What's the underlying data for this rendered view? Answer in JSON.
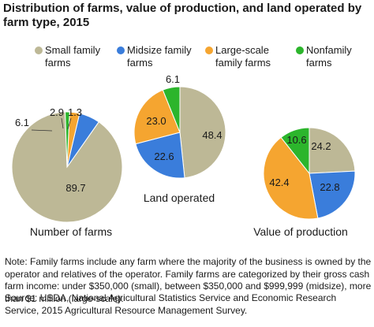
{
  "title": "Distribution of farms, value of production, and land operated by farm type, 2015",
  "colors": {
    "small_family": "#bdb896",
    "midsize_family": "#3a7ddb",
    "large_scale_family": "#f5a530",
    "nonfamily": "#2cb52c"
  },
  "legend": [
    {
      "label": "Small family\nfarms",
      "color": "#bdb896"
    },
    {
      "label": "Midsize family\nfarms",
      "color": "#3a7ddb"
    },
    {
      "label": "Large-scale\nfamily farms",
      "color": "#f5a530"
    },
    {
      "label": "Nonfamily\nfarms",
      "color": "#2cb52c"
    }
  ],
  "chart_data": [
    {
      "type": "pie",
      "title": "Number of farms",
      "categories": [
        "Small family farms",
        "Midsize family farms",
        "Large-scale family farms",
        "Nonfamily farms"
      ],
      "values": [
        89.7,
        6.1,
        2.9,
        1.3
      ],
      "labels": [
        "89.7",
        "6.1",
        "2.9",
        "1.3"
      ]
    },
    {
      "type": "pie",
      "title": "Land operated",
      "categories": [
        "Small family farms",
        "Midsize family farms",
        "Large-scale family farms",
        "Nonfamily farms"
      ],
      "values": [
        48.4,
        22.6,
        23.0,
        6.1
      ],
      "labels": [
        "48.4",
        "22.6",
        "23.0",
        "6.1"
      ]
    },
    {
      "type": "pie",
      "title": "Value of production",
      "categories": [
        "Small family farms",
        "Midsize family farms",
        "Large-scale family farms",
        "Nonfamily farms"
      ],
      "values": [
        24.2,
        22.8,
        42.4,
        10.6
      ],
      "labels": [
        "24.2",
        "22.8",
        "42.4",
        "10.6"
      ]
    }
  ],
  "note": "Note: Family farms include any farm where the majority of the business is owned by the operator and relatives of the operator.  Family farms are categorized by their gross cash farm income: under $350,000 (small), between $350,000 and $999,999 (midsize), more than $1 million (large-scale).",
  "source": "Source: USDA, National Agricultural Statistics Service and Economic Research Service, 2015 Agricultural Resource Management Survey."
}
